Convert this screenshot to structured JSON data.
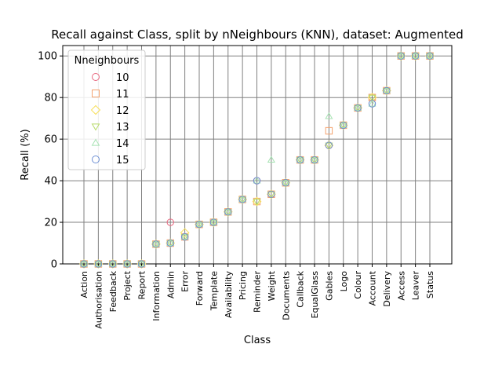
{
  "chart_data": {
    "type": "scatter",
    "title": "Recall against Class, split by nNeighbours (KNN), dataset: Augmented",
    "xlabel": "Class",
    "ylabel": "Recall (%)",
    "ylim": [
      0,
      105
    ],
    "yticks": [
      0,
      20,
      40,
      60,
      80,
      100
    ],
    "grid": true,
    "legend": {
      "title": "Nneighbours",
      "placement": "top-left"
    },
    "categories": [
      "Action",
      "Authorisation",
      "Feedback",
      "Project",
      "Report",
      "Information",
      "Admin",
      "Error",
      "Forward",
      "Template",
      "Availability",
      "Pricing",
      "Reminder",
      "Weight",
      "Documents",
      "Callback",
      "EqualGlass",
      "Gables",
      "Logo",
      "Colour",
      "Account",
      "Delivery",
      "Access",
      "Leaver",
      "Status"
    ],
    "series": [
      {
        "name": "10",
        "marker": "circle",
        "color": "#e8677f",
        "values": [
          0,
          0,
          0,
          0,
          0,
          9.5,
          20,
          13,
          19,
          20,
          25,
          31,
          40,
          33.5,
          39,
          50,
          50,
          57,
          66.7,
          75,
          80,
          83.3,
          100,
          100,
          100
        ]
      },
      {
        "name": "11",
        "marker": "square",
        "color": "#f4a36f",
        "values": [
          0,
          0,
          0,
          0,
          0,
          9.5,
          10,
          13,
          19,
          20,
          25,
          31,
          30,
          33.5,
          39,
          50,
          50,
          64,
          66.7,
          75,
          80,
          83.3,
          100,
          100,
          100
        ]
      },
      {
        "name": "12",
        "marker": "diamond",
        "color": "#f7e05c",
        "values": [
          0,
          0,
          0,
          0,
          0,
          9.5,
          10,
          15,
          19,
          20,
          25,
          31,
          30,
          33.5,
          39,
          50,
          50,
          57,
          66.7,
          75,
          80,
          83.3,
          100,
          100,
          100
        ]
      },
      {
        "name": "13",
        "marker": "triangle-down",
        "color": "#b8db6a",
        "values": [
          0,
          0,
          0,
          0,
          0,
          9.5,
          10,
          13,
          19,
          20,
          25,
          31,
          30,
          33.5,
          39,
          50,
          50,
          57,
          66.7,
          75,
          80,
          83.3,
          100,
          100,
          100
        ]
      },
      {
        "name": "14",
        "marker": "triangle-up",
        "color": "#a8e3b4",
        "values": [
          0,
          0,
          0,
          0,
          0,
          9.5,
          10,
          13,
          19,
          20,
          25,
          31,
          40,
          50,
          39,
          50,
          50,
          71,
          66.7,
          75,
          77,
          83.3,
          100,
          100,
          100
        ]
      },
      {
        "name": "15",
        "marker": "circle",
        "color": "#6d8fd4",
        "values": [
          0,
          0,
          0,
          0,
          0,
          9.5,
          10,
          13,
          19,
          20,
          25,
          31,
          40,
          33.5,
          39,
          50,
          50,
          57,
          66.7,
          75,
          77,
          83.3,
          100,
          100,
          100
        ]
      }
    ]
  }
}
